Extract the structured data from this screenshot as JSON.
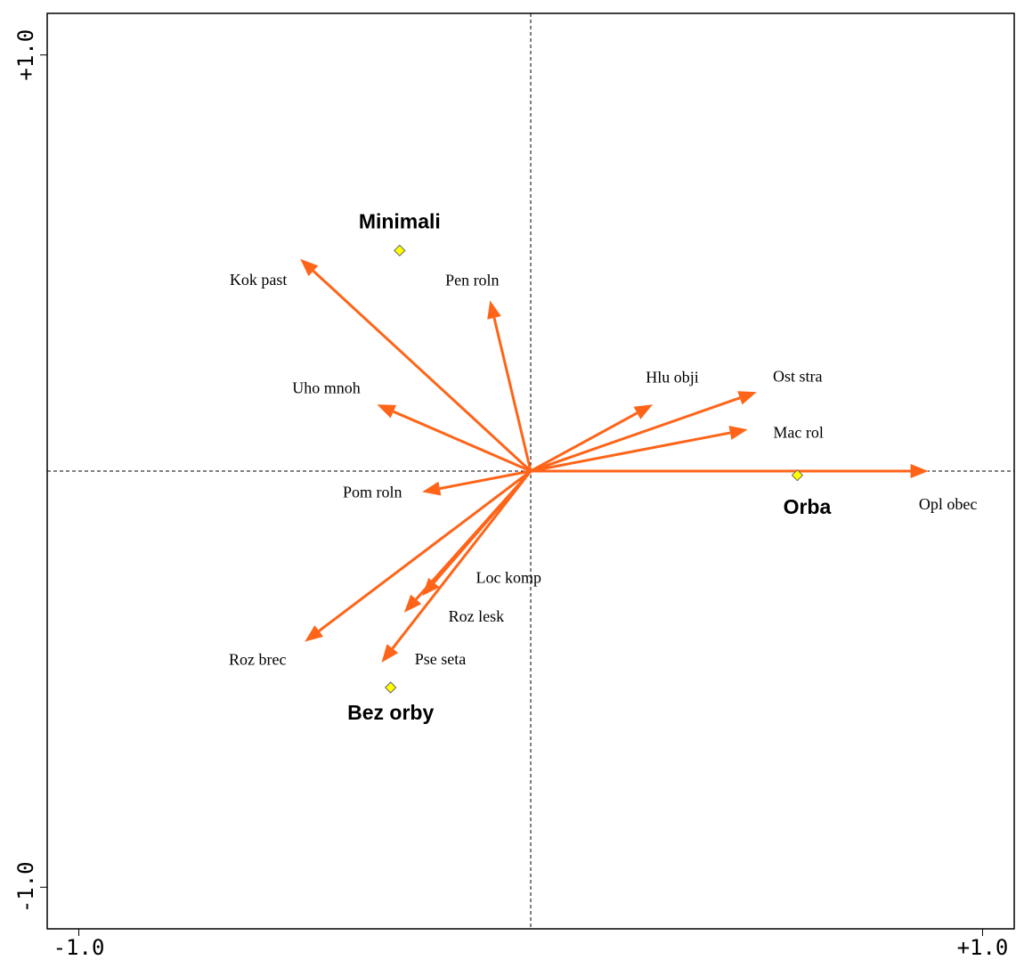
{
  "chart_data": {
    "type": "biplot",
    "xlim": [
      -1.07,
      1.07
    ],
    "ylim": [
      -1.1,
      1.1
    ],
    "xticks": [
      {
        "value": -1.0,
        "label": "-1.0"
      },
      {
        "value": 1.0,
        "label": "+1.0"
      }
    ],
    "yticks": [
      {
        "value": -1.0,
        "label": "-1.0"
      },
      {
        "value": 1.0,
        "label": "+1.0"
      }
    ],
    "arrows": {
      "color": "#ff6418",
      "labels": [
        "Opl obec",
        "Mac rol",
        "Ost stra",
        "Hlu obji",
        "Pen roln",
        "Kok past",
        "Uho mnoh",
        "Pom roln",
        "Loc komp",
        "Roz lesk",
        "Roz brec",
        "Pse seta"
      ],
      "x": [
        0.88,
        0.48,
        0.5,
        0.27,
        -0.09,
        -0.51,
        -0.34,
        -0.24,
        -0.24,
        -0.28,
        -0.5,
        -0.33
      ],
      "y": [
        0.0,
        0.1,
        0.19,
        0.16,
        0.41,
        0.51,
        0.16,
        -0.05,
        -0.3,
        -0.34,
        -0.41,
        -0.46
      ]
    },
    "points": {
      "color": "#ffff00",
      "labels": [
        "Minimali",
        "Bez orby",
        "Orba"
      ],
      "x": [
        -0.29,
        -0.31,
        0.59
      ],
      "y": [
        0.53,
        -0.52,
        -0.01
      ]
    }
  }
}
